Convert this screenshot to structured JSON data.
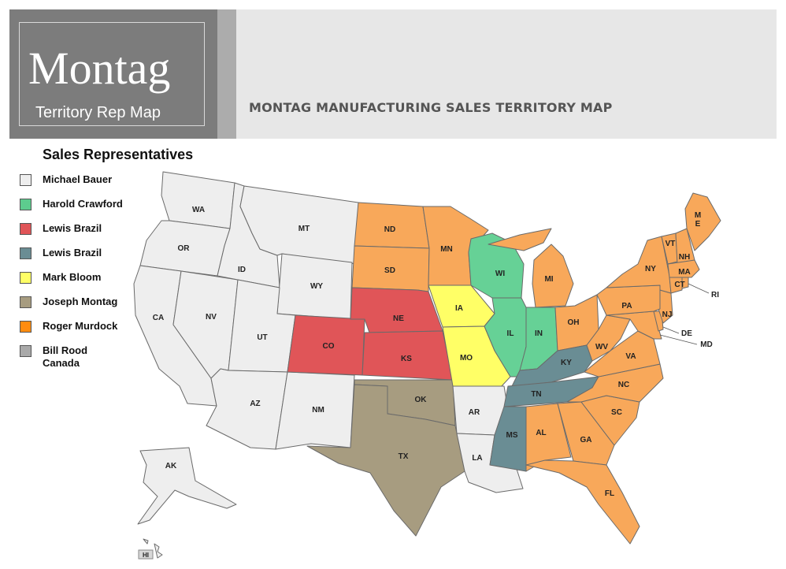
{
  "header": {
    "logo_title": "Montag",
    "logo_subtitle": "Territory Rep Map",
    "page_title": "MONTAG MANUFACTURING SALES TERRITORY MAP"
  },
  "legend": {
    "title": "Sales Representatives",
    "items": [
      {
        "label": "Michael Bauer",
        "color": "#eeeeee"
      },
      {
        "label": "Harold Crawford",
        "color": "#5dcc8e"
      },
      {
        "label": "Lewis Brazil",
        "color": "#e05558"
      },
      {
        "label": "Lewis Brazil",
        "color": "#6a8d94"
      },
      {
        "label": "Mark Bloom",
        "color": "#ffff66"
      },
      {
        "label": "Joseph Montag",
        "color": "#a79c80"
      },
      {
        "label": "Roger Murdock",
        "color": "#ff8c10"
      },
      {
        "label": "Bill Rood\nCanada",
        "color": "#a9a9a9"
      }
    ]
  },
  "territories": {
    "michael_bauer": "#eeeeee",
    "harold_crawford": "#66d196",
    "lewis_brazil_red": "#e05558",
    "lewis_brazil_slate": "#6a8d94",
    "mark_bloom": "#ffff66",
    "joseph_montag": "#a79c80",
    "roger_murdock": "#f8a85a"
  },
  "states": {
    "WA": "WA",
    "OR": "OR",
    "CA": "CA",
    "NV": "NV",
    "ID": "ID",
    "MT": "MT",
    "WY": "WY",
    "UT": "UT",
    "AZ": "AZ",
    "NM": "NM",
    "CO": "CO",
    "ND": "ND",
    "SD": "SD",
    "NE": "NE",
    "KS": "KS",
    "OK": "OK",
    "TX": "TX",
    "MN": "MN",
    "IA": "IA",
    "MO": "MO",
    "AR": "AR",
    "LA": "LA",
    "WI": "WI",
    "IL": "IL",
    "MI": "MI",
    "IN": "IN",
    "OH": "OH",
    "KY": "KY",
    "TN": "TN",
    "MS": "MS",
    "AL": "AL",
    "GA": "GA",
    "FL": "FL",
    "SC": "SC",
    "NC": "NC",
    "VA": "VA",
    "WV": "WV",
    "PA": "PA",
    "NY": "NY",
    "NJ": "NJ",
    "DE": "DE",
    "MD": "MD",
    "CT": "CT",
    "RI": "RI",
    "MA": "MA",
    "VT": "VT",
    "NH": "NH",
    "ME": "M\nE",
    "AK": "AK",
    "HI": "HI"
  }
}
